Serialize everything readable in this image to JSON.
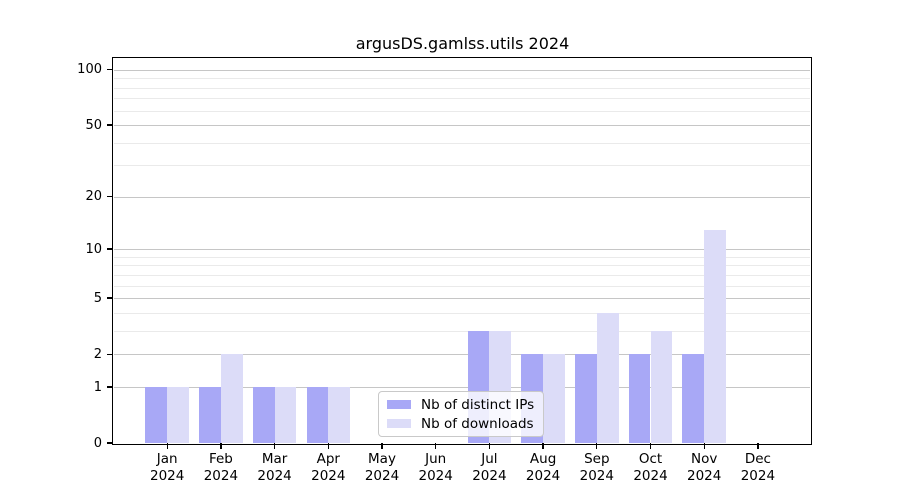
{
  "title": "argusDS.gamlss.utils 2024",
  "legend": {
    "position": "lower-center-inside",
    "items": [
      {
        "label": "Nb of distinct IPs",
        "color": "#a8a8f6"
      },
      {
        "label": "Nb of downloads",
        "color": "#dcdcf8"
      }
    ]
  },
  "colors": {
    "bar_distinct_ips": "#a8a8f6",
    "bar_downloads": "#dcdcf8",
    "major_gridline": "#c6c6c6",
    "minor_gridline": "#eaeaea",
    "axis_spine": "#000000"
  },
  "chart_data": {
    "type": "bar",
    "title": "argusDS.gamlss.utils 2024",
    "categories": [
      "Jan 2024",
      "Feb 2024",
      "Mar 2024",
      "Apr 2024",
      "May 2024",
      "Jun 2024",
      "Jul 2024",
      "Aug 2024",
      "Sep 2024",
      "Oct 2024",
      "Nov 2024",
      "Dec 2024"
    ],
    "series": [
      {
        "name": "Nb of distinct IPs",
        "color": "#a8a8f6",
        "values": [
          1,
          1,
          1,
          1,
          0,
          0,
          3,
          2,
          2,
          2,
          2,
          0
        ]
      },
      {
        "name": "Nb of downloads",
        "color": "#dcdcf8",
        "values": [
          1,
          2,
          1,
          1,
          0,
          0,
          3,
          2,
          4,
          3,
          13,
          0
        ]
      }
    ],
    "xlabel": "",
    "ylabel": "",
    "yscale": "log1p",
    "ylim": [
      0,
      114.5
    ],
    "yticks": [
      0,
      1,
      2,
      5,
      10,
      20,
      50,
      100
    ],
    "minor_yticks": [
      3,
      4,
      6,
      7,
      8,
      9,
      30,
      40,
      60,
      70,
      80,
      90
    ],
    "grid": true,
    "legend_position": "lower center (inside axes)"
  }
}
